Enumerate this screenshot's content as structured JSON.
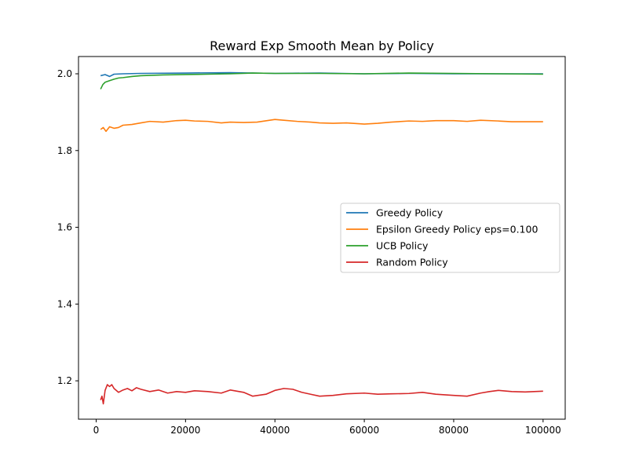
{
  "chart_data": {
    "type": "line",
    "title": "Reward Exp Smooth Mean by Policy",
    "xlabel": "",
    "ylabel": "",
    "xlim": [
      -3950,
      104950
    ],
    "ylim": [
      1.1,
      2.045
    ],
    "xticks": [
      0,
      20000,
      40000,
      60000,
      80000,
      100000
    ],
    "xtick_labels": [
      "0",
      "20000",
      "40000",
      "60000",
      "80000",
      "100000"
    ],
    "yticks": [
      1.2,
      1.4,
      1.6,
      1.8,
      2.0
    ],
    "ytick_labels": [
      "1.2",
      "1.4",
      "1.6",
      "1.8",
      "2.0"
    ],
    "grid": false,
    "legend_position": "center-right",
    "series": [
      {
        "name": "Greedy Policy",
        "color": "#1f77b4",
        "x": [
          1000,
          2000,
          3000,
          4000,
          6000,
          10000,
          20000,
          30000,
          40000,
          50000,
          60000,
          70000,
          80000,
          90000,
          100000
        ],
        "values": [
          1.995,
          1.998,
          1.993,
          1.999,
          2.0,
          2.001,
          2.002,
          2.003,
          2.001,
          2.002,
          2.0,
          2.001,
          2.0,
          2.0,
          2.0
        ]
      },
      {
        "name": "Epsilon Greedy Policy eps=0.100",
        "color": "#ff7f0e",
        "x": [
          1000,
          1600,
          2200,
          3000,
          4000,
          5000,
          6000,
          8000,
          10000,
          12000,
          15000,
          18000,
          20000,
          22000,
          25000,
          28000,
          30000,
          33000,
          36000,
          40000,
          42000,
          45000,
          48000,
          50000,
          53000,
          56000,
          60000,
          63000,
          66000,
          70000,
          73000,
          76000,
          80000,
          83000,
          86000,
          90000,
          93000,
          96000,
          100000
        ],
        "values": [
          1.855,
          1.86,
          1.85,
          1.862,
          1.858,
          1.86,
          1.866,
          1.868,
          1.872,
          1.876,
          1.874,
          1.878,
          1.879,
          1.877,
          1.876,
          1.872,
          1.874,
          1.873,
          1.874,
          1.881,
          1.879,
          1.876,
          1.874,
          1.872,
          1.871,
          1.872,
          1.869,
          1.871,
          1.874,
          1.877,
          1.876,
          1.878,
          1.878,
          1.876,
          1.879,
          1.877,
          1.875,
          1.875,
          1.875
        ]
      },
      {
        "name": "UCB Policy",
        "color": "#2ca02c",
        "x": [
          1000,
          1500,
          2000,
          3000,
          4000,
          5000,
          6000,
          8000,
          10000,
          15000,
          20000,
          25000,
          30000,
          35000,
          40000,
          50000,
          60000,
          70000,
          80000,
          90000,
          100000
        ],
        "values": [
          1.96,
          1.972,
          1.978,
          1.982,
          1.986,
          1.989,
          1.99,
          1.993,
          1.995,
          1.997,
          1.998,
          1.999,
          2.0,
          2.002,
          2.001,
          2.001,
          2.0,
          2.002,
          2.001,
          2.0,
          1.999
        ]
      },
      {
        "name": "Random Policy",
        "color": "#d62728",
        "x": [
          1000,
          1300,
          1600,
          2000,
          2500,
          3000,
          3500,
          4000,
          5000,
          6000,
          7000,
          8000,
          9000,
          10000,
          12000,
          14000,
          16000,
          18000,
          20000,
          22000,
          25000,
          28000,
          30000,
          33000,
          35000,
          38000,
          40000,
          42000,
          44000,
          46000,
          48000,
          50000,
          53000,
          56000,
          60000,
          63000,
          66000,
          70000,
          73000,
          76000,
          80000,
          83000,
          86000,
          88000,
          90000,
          93000,
          96000,
          100000
        ],
        "values": [
          1.15,
          1.16,
          1.14,
          1.175,
          1.19,
          1.185,
          1.19,
          1.18,
          1.17,
          1.176,
          1.18,
          1.174,
          1.182,
          1.178,
          1.172,
          1.176,
          1.168,
          1.172,
          1.17,
          1.174,
          1.172,
          1.168,
          1.176,
          1.17,
          1.16,
          1.165,
          1.175,
          1.18,
          1.178,
          1.17,
          1.165,
          1.16,
          1.162,
          1.166,
          1.168,
          1.165,
          1.166,
          1.167,
          1.17,
          1.165,
          1.162,
          1.16,
          1.168,
          1.172,
          1.175,
          1.172,
          1.171,
          1.173
        ]
      }
    ]
  }
}
